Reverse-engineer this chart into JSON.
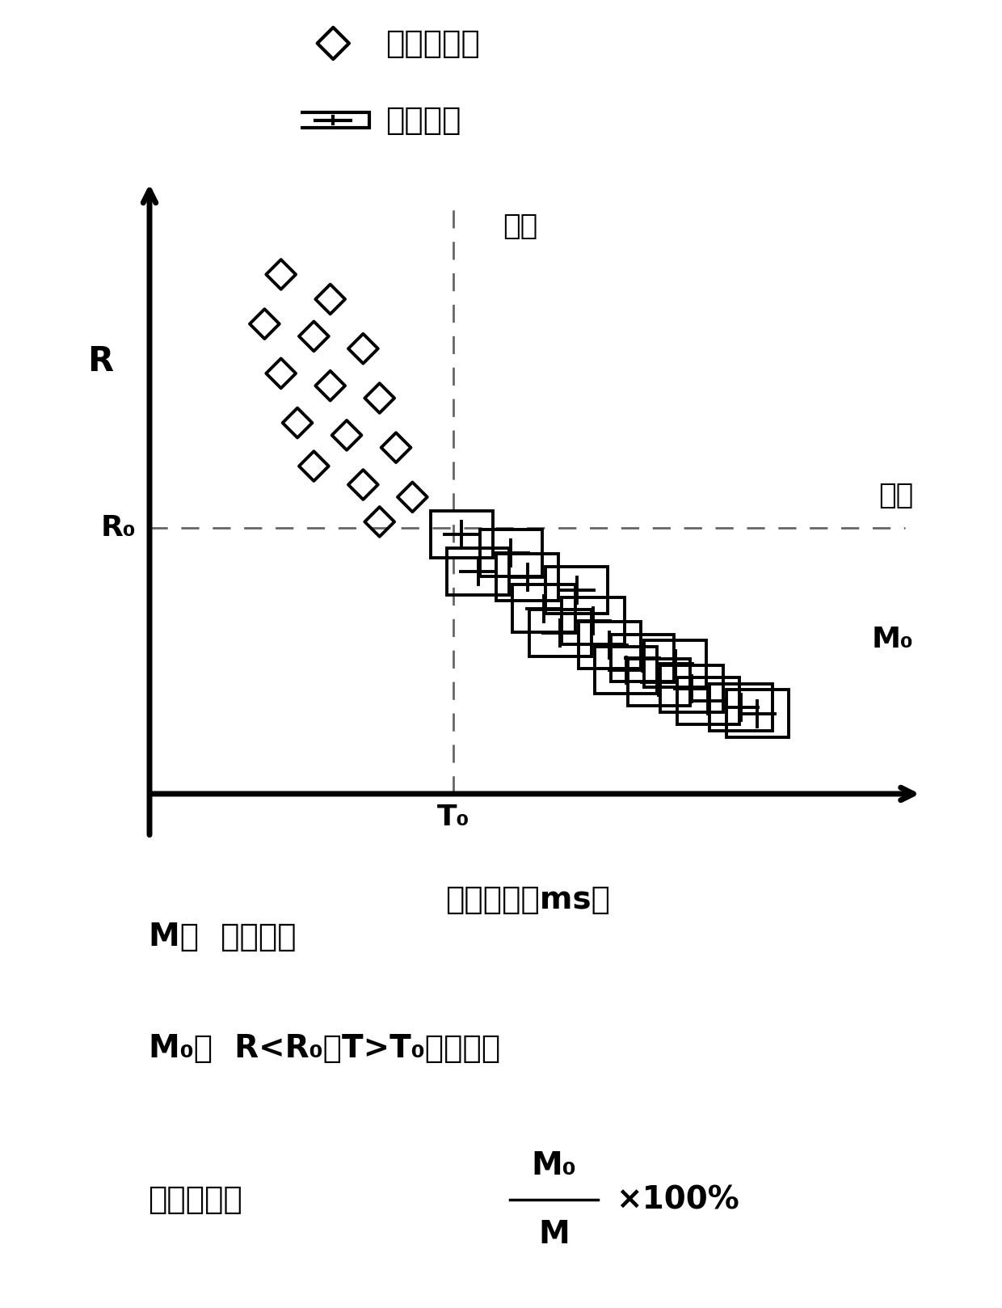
{
  "diamond_points": [
    [
      0.22,
      0.91
    ],
    [
      0.28,
      0.87
    ],
    [
      0.2,
      0.83
    ],
    [
      0.26,
      0.81
    ],
    [
      0.32,
      0.79
    ],
    [
      0.22,
      0.75
    ],
    [
      0.28,
      0.73
    ],
    [
      0.34,
      0.71
    ],
    [
      0.24,
      0.67
    ],
    [
      0.3,
      0.65
    ],
    [
      0.36,
      0.63
    ],
    [
      0.26,
      0.6
    ],
    [
      0.32,
      0.57
    ],
    [
      0.38,
      0.55
    ],
    [
      0.34,
      0.51
    ]
  ],
  "cross_points": [
    [
      0.44,
      0.49
    ],
    [
      0.5,
      0.46
    ],
    [
      0.46,
      0.43
    ],
    [
      0.52,
      0.42
    ],
    [
      0.58,
      0.4
    ],
    [
      0.54,
      0.37
    ],
    [
      0.6,
      0.35
    ],
    [
      0.56,
      0.33
    ],
    [
      0.62,
      0.31
    ],
    [
      0.66,
      0.29
    ],
    [
      0.7,
      0.28
    ],
    [
      0.64,
      0.27
    ],
    [
      0.68,
      0.25
    ],
    [
      0.72,
      0.24
    ],
    [
      0.74,
      0.22
    ],
    [
      0.78,
      0.21
    ],
    [
      0.8,
      0.2
    ]
  ],
  "T0": 0.43,
  "R0": 0.5,
  "bg_color": "#ffffff",
  "marker_color": "#000000",
  "dashed_color": "#666666",
  "axis_color": "#000000",
  "legend_label1": "未出芽酵母",
  "legend_label2": "出芽酵母",
  "xlabel": "脉冲宽度（ms）",
  "ylabel": "R",
  "threshold_top": "阈値",
  "threshold_right": "阈値",
  "T0_label": "T₀",
  "R0_label": "R₀",
  "M0_label": "M₀",
  "formula_line1": "M：  细胞总数",
  "formula_line2_p1": "M₀：  R<R₀且T>T₀的细胞数",
  "formula_line3_pre": "出芽比例＝",
  "formula_line3_frac_num": "M₀",
  "formula_line3_frac_den": "M",
  "formula_line3_post": "×100%"
}
